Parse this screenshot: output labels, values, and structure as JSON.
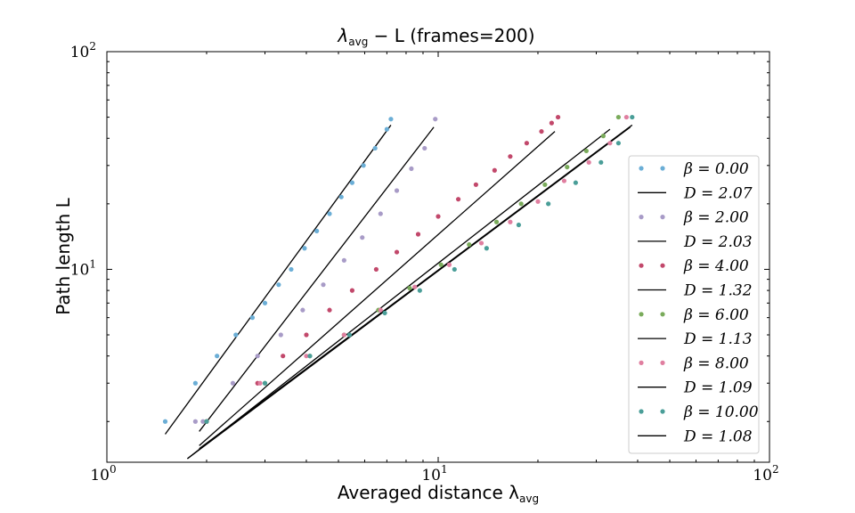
{
  "chart_data": {
    "type": "scatter",
    "title_main": "λ",
    "title_sub": "avg",
    "title_rest": " − L (frames=200)",
    "xlabel_main": "Averaged distance λ",
    "xlabel_sub": "avg",
    "ylabel": "Path length L",
    "xscale": "log",
    "yscale": "log",
    "xlim": [
      1,
      100
    ],
    "ylim": [
      1.3,
      100
    ],
    "x_ticks": [
      {
        "value": 1,
        "base": "10",
        "exp": "0"
      },
      {
        "value": 10,
        "base": "10",
        "exp": "1"
      },
      {
        "value": 100,
        "base": "10",
        "exp": "2"
      }
    ],
    "y_ticks": [
      {
        "value": 10,
        "base": "10",
        "exp": "1"
      },
      {
        "value": 100,
        "base": "10",
        "exp": "2"
      }
    ],
    "grid": false,
    "legend_position": "right",
    "series": [
      {
        "name": "β = 0.00",
        "color": "#6baed6",
        "x": [
          1.5,
          1.85,
          2.15,
          2.45,
          2.75,
          3.0,
          3.3,
          3.6,
          3.95,
          4.3,
          4.7,
          5.1,
          5.5,
          5.95,
          6.45,
          7.0,
          7.2
        ],
        "y": [
          2.0,
          3.0,
          4.0,
          5.0,
          6.0,
          7.0,
          8.5,
          10.0,
          12.5,
          15.0,
          18.0,
          21.5,
          25.0,
          30.0,
          36.0,
          44.0,
          49.0
        ]
      },
      {
        "name": "D = 2.07",
        "type": "fit",
        "color": "#000000",
        "x": [
          1.5,
          7.2
        ],
        "y": [
          1.75,
          46.0
        ]
      },
      {
        "name": "β = 2.00",
        "color": "#a89bc7",
        "x": [
          1.85,
          1.95,
          2.4,
          2.85,
          3.35,
          3.9,
          4.5,
          5.2,
          5.9,
          6.7,
          7.5,
          8.3,
          9.1,
          9.8
        ],
        "y": [
          2.0,
          2.0,
          3.0,
          4.0,
          5.0,
          6.5,
          8.5,
          11.0,
          14.0,
          18.0,
          23.0,
          29.0,
          36.0,
          49.0
        ]
      },
      {
        "name": "D = 2.03",
        "type": "fit",
        "color": "#000000",
        "x": [
          1.9,
          9.7
        ],
        "y": [
          1.8,
          45.0
        ]
      },
      {
        "name": "β = 4.00",
        "color": "#c2486b",
        "x": [
          2.0,
          2.85,
          3.4,
          4.0,
          4.7,
          5.5,
          6.5,
          7.5,
          8.7,
          10.0,
          11.5,
          13.0,
          14.8,
          16.5,
          18.5,
          20.5,
          22.0,
          23.0
        ],
        "y": [
          2.0,
          3.0,
          4.0,
          5.0,
          6.5,
          8.0,
          10.0,
          12.0,
          14.5,
          17.5,
          21.0,
          24.5,
          28.5,
          33.0,
          38.0,
          43.0,
          47.0,
          50.0
        ]
      },
      {
        "name": "D = 1.32",
        "type": "fit",
        "color": "#000000",
        "x": [
          1.9,
          22.5
        ],
        "y": [
          1.55,
          43.0
        ]
      },
      {
        "name": "β = 6.00",
        "color": "#7aab5b",
        "x": [
          2.0,
          3.0,
          4.1,
          5.2,
          6.6,
          8.2,
          10.2,
          12.4,
          15.0,
          17.8,
          21.0,
          24.5,
          28.0,
          31.5,
          35.0
        ],
        "y": [
          2.0,
          3.0,
          4.0,
          5.0,
          6.5,
          8.2,
          10.5,
          13.0,
          16.5,
          20.0,
          24.5,
          29.5,
          35.0,
          41.0,
          50.0
        ]
      },
      {
        "name": "D = 1.13",
        "type": "fit",
        "color": "#000000",
        "x": [
          1.75,
          33.0
        ],
        "y": [
          1.35,
          44.0
        ]
      },
      {
        "name": "β = 8.00",
        "color": "#e07fa0",
        "x": [
          2.9,
          4.0,
          5.2,
          6.7,
          8.5,
          10.8,
          13.5,
          16.5,
          20.0,
          24.0,
          28.5,
          33.0,
          37.0
        ],
        "y": [
          3.0,
          4.0,
          5.0,
          6.5,
          8.3,
          10.5,
          13.2,
          16.5,
          20.5,
          25.5,
          31.0,
          38.0,
          50.0
        ]
      },
      {
        "name": "D = 1.09",
        "type": "fit",
        "color": "#000000",
        "x": [
          1.75,
          38.0
        ],
        "y": [
          1.35,
          45.0
        ]
      },
      {
        "name": "β = 10.00",
        "color": "#4a9e98",
        "x": [
          2.0,
          3.0,
          4.1,
          5.4,
          6.9,
          8.8,
          11.2,
          14.0,
          17.5,
          21.5,
          26.0,
          31.0,
          35.0,
          38.5
        ],
        "y": [
          2.0,
          3.0,
          4.0,
          5.0,
          6.3,
          8.0,
          10.0,
          12.5,
          16.0,
          20.0,
          25.0,
          31.0,
          38.0,
          50.0
        ]
      },
      {
        "name": "D = 1.08",
        "type": "fit",
        "color": "#000000",
        "x": [
          1.9,
          38.5
        ],
        "y": [
          1.5,
          46.0
        ]
      }
    ]
  }
}
